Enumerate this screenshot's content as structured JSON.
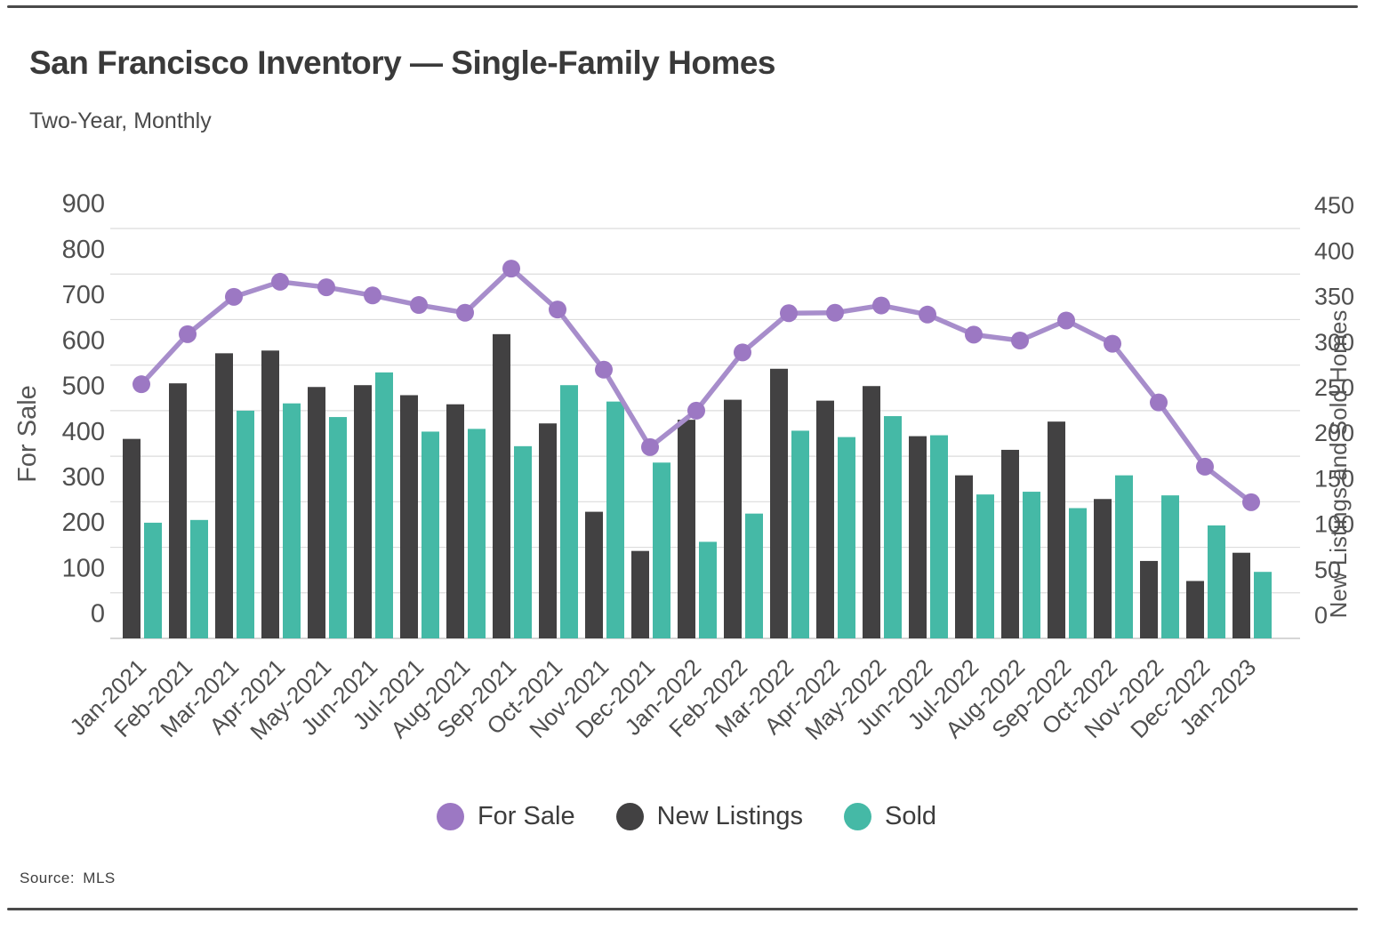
{
  "page": {
    "title": "San Francisco Inventory — Single-Family Homes",
    "subtitle": "Two-Year, Monthly",
    "source": "Source: MLS"
  },
  "legend": {
    "items": [
      {
        "label": "For Sale",
        "color": "#9c78c3"
      },
      {
        "label": "New Listings",
        "color": "#424142"
      },
      {
        "label": "Sold",
        "color": "#45b9a6"
      }
    ]
  },
  "chart_data": {
    "type": "bar+line",
    "title": "San Francisco Inventory — Single-Family Homes",
    "subtitle": "Two-Year, Monthly",
    "grid": true,
    "legend_position": "bottom",
    "categories": [
      "Jan-2021",
      "Feb-2021",
      "Mar-2021",
      "Apr-2021",
      "May-2021",
      "Jun-2021",
      "Jul-2021",
      "Aug-2021",
      "Sep-2021",
      "Oct-2021",
      "Nov-2021",
      "Dec-2021",
      "Jan-2022",
      "Feb-2022",
      "Mar-2022",
      "Apr-2022",
      "May-2022",
      "Jun-2022",
      "Jul-2022",
      "Aug-2022",
      "Sep-2022",
      "Oct-2022",
      "Nov-2022",
      "Dec-2022",
      "Jan-2023"
    ],
    "left_axis": {
      "title": "For Sale",
      "min": 0,
      "max": 900,
      "tick_step": 100,
      "ticks": [
        0,
        100,
        200,
        300,
        400,
        500,
        600,
        700,
        800,
        900
      ]
    },
    "right_axis": {
      "title": "New Listings and Sold Homes",
      "min": 0,
      "max": 450,
      "tick_step": 50,
      "ticks": [
        0,
        50,
        100,
        150,
        200,
        250,
        300,
        350,
        400,
        450
      ]
    },
    "series": [
      {
        "name": "For Sale",
        "type": "line",
        "axis": "left",
        "color": "#a78dcb",
        "point_color": "#9c78c3",
        "values": [
          558,
          668,
          750,
          783,
          771,
          753,
          732,
          715,
          812,
          722,
          590,
          420,
          500,
          628,
          714,
          715,
          731,
          711,
          667,
          654,
          698,
          647,
          518,
          377,
          299
        ]
      },
      {
        "name": "New Listings",
        "type": "bar",
        "axis": "right",
        "color": "#424142",
        "values": [
          219,
          280,
          313,
          316,
          276,
          278,
          267,
          257,
          334,
          236,
          139,
          96,
          240,
          262,
          296,
          261,
          277,
          222,
          179,
          207,
          238,
          153,
          85,
          63,
          94
        ]
      },
      {
        "name": "Sold",
        "type": "bar",
        "axis": "right",
        "color": "#45b9a6",
        "values": [
          127,
          130,
          250,
          258,
          243,
          292,
          227,
          230,
          211,
          278,
          260,
          193,
          106,
          137,
          228,
          221,
          244,
          223,
          158,
          161,
          143,
          179,
          157,
          124,
          73
        ]
      }
    ]
  }
}
